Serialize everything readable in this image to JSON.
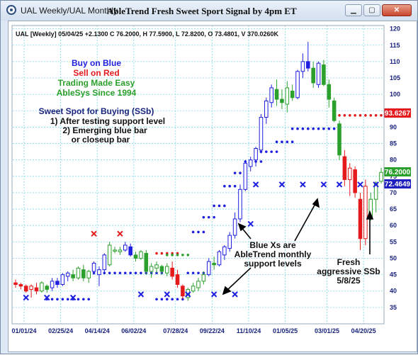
{
  "window": {
    "title": "UAL Weekly/UAL Monthly",
    "chart_title": "AbleTrend Fresh Sweet Sport Signal by 4pm ET"
  },
  "info_line": "UAL [Weekly] 05/04/25 +2.1300 C 76.2000, H 77.5900, L 72.8200, O 73.4801, V 370.0260K",
  "legend": {
    "line1": "Buy on Blue",
    "line2": "Sell on Red",
    "line3": "Trading Made Easy",
    "line4": "AbleSys Since 1994"
  },
  "sweet_spot": {
    "title": "Sweet Spot for Buying (SSb)",
    "item1": "1) After testing support level",
    "item2": "2) Emerging blue bar",
    "item3": "or closeup bar"
  },
  "annotations": {
    "blue_xs": [
      "Blue Xs are",
      "AbleTrend monthly",
      "support levels"
    ],
    "fresh": [
      "Fresh",
      "aggressive SSb",
      "5/8/25"
    ]
  },
  "price_tags": [
    {
      "value": "93.6267",
      "color": "#e41a1c"
    },
    {
      "value": "76.2000",
      "color": "#2ca02c"
    },
    {
      "value": "72.4649",
      "color": "#1f1fbf"
    }
  ],
  "colors": {
    "buy": "#1f1fe0",
    "sell": "#e41a1c",
    "neutral": "#2ca02c",
    "grid": "#7fd9e6"
  },
  "chart_data": {
    "type": "candlestick",
    "x_tick_labels": [
      "01/01/24",
      "02/25/24",
      "04/14/24",
      "06/02/24",
      "07/28/24",
      "09/22/24",
      "11/10/24",
      "01/05/25",
      "03/01/25",
      "04/20/25"
    ],
    "y_ticks": [
      35,
      40,
      45,
      50,
      55,
      60,
      65,
      70,
      75,
      80,
      85,
      90,
      95,
      100,
      105,
      110,
      115,
      120
    ],
    "ylim": [
      30,
      121
    ],
    "bar_count": 71,
    "candles": [
      {
        "o": 42.5,
        "h": 43.5,
        "l": 41.0,
        "c": 42.0,
        "col": "red"
      },
      {
        "o": 42.0,
        "h": 42.5,
        "l": 40.5,
        "c": 41.5,
        "col": "red"
      },
      {
        "o": 41.5,
        "h": 42.0,
        "l": 39.5,
        "c": 40.0,
        "col": "red"
      },
      {
        "o": 40.5,
        "h": 42.0,
        "l": 38.0,
        "c": 41.5,
        "col": "red"
      },
      {
        "o": 41.0,
        "h": 42.5,
        "l": 39.0,
        "c": 40.0,
        "col": "red"
      },
      {
        "o": 40.0,
        "h": 43.0,
        "l": 39.5,
        "c": 42.5,
        "col": "green"
      },
      {
        "o": 41.5,
        "h": 42.0,
        "l": 39.5,
        "c": 40.5,
        "col": "green"
      },
      {
        "o": 41.0,
        "h": 44.0,
        "l": 40.0,
        "c": 43.0,
        "col": "blue"
      },
      {
        "o": 43.0,
        "h": 44.0,
        "l": 41.0,
        "c": 42.0,
        "col": "blue"
      },
      {
        "o": 42.0,
        "h": 45.5,
        "l": 41.5,
        "c": 45.0,
        "col": "blue"
      },
      {
        "o": 44.5,
        "h": 46.0,
        "l": 43.0,
        "c": 45.5,
        "col": "blue"
      },
      {
        "o": 45.0,
        "h": 46.5,
        "l": 43.0,
        "c": 44.0,
        "col": "green"
      },
      {
        "o": 44.0,
        "h": 47.5,
        "l": 43.5,
        "c": 47.0,
        "col": "green"
      },
      {
        "o": 46.5,
        "h": 48.0,
        "l": 43.0,
        "c": 44.0,
        "col": "green"
      },
      {
        "o": 44.0,
        "h": 46.5,
        "l": 42.5,
        "c": 46.0,
        "col": "green"
      },
      {
        "o": 46.0,
        "h": 49.0,
        "l": 45.0,
        "c": 48.5,
        "col": "blue"
      },
      {
        "o": 45.0,
        "h": 47.5,
        "l": 41.5,
        "c": 46.5,
        "col": "blue"
      },
      {
        "o": 46.5,
        "h": 51.5,
        "l": 45.5,
        "c": 51.0,
        "col": "blue"
      },
      {
        "o": 48.0,
        "h": 55.0,
        "l": 47.5,
        "c": 54.0,
        "col": "green"
      },
      {
        "o": 52.5,
        "h": 53.5,
        "l": 51.5,
        "c": 52.5,
        "col": "green"
      },
      {
        "o": 52.0,
        "h": 53.5,
        "l": 51.0,
        "c": 52.5,
        "col": "green"
      },
      {
        "o": 52.5,
        "h": 55.0,
        "l": 52.0,
        "c": 54.0,
        "col": "blue"
      },
      {
        "o": 53.5,
        "h": 54.5,
        "l": 50.5,
        "c": 51.0,
        "col": "blue"
      },
      {
        "o": 51.0,
        "h": 52.0,
        "l": 49.0,
        "c": 50.0,
        "col": "green"
      },
      {
        "o": 50.0,
        "h": 52.5,
        "l": 49.5,
        "c": 52.0,
        "col": "green"
      },
      {
        "o": 51.5,
        "h": 52.5,
        "l": 45.0,
        "c": 46.0,
        "col": "green"
      },
      {
        "o": 46.0,
        "h": 48.5,
        "l": 44.0,
        "c": 47.5,
        "col": "green"
      },
      {
        "o": 47.0,
        "h": 49.0,
        "l": 45.5,
        "c": 48.0,
        "col": "green"
      },
      {
        "o": 47.5,
        "h": 48.0,
        "l": 45.0,
        "c": 46.0,
        "col": "green"
      },
      {
        "o": 45.5,
        "h": 48.5,
        "l": 44.5,
        "c": 47.5,
        "col": "green"
      },
      {
        "o": 47.0,
        "h": 49.0,
        "l": 43.5,
        "c": 44.5,
        "col": "red"
      },
      {
        "o": 45.0,
        "h": 46.5,
        "l": 41.0,
        "c": 42.0,
        "col": "red"
      },
      {
        "o": 41.5,
        "h": 42.0,
        "l": 37.5,
        "c": 38.5,
        "col": "red"
      },
      {
        "o": 38.0,
        "h": 41.0,
        "l": 37.0,
        "c": 40.5,
        "col": "green"
      },
      {
        "o": 40.0,
        "h": 42.5,
        "l": 39.5,
        "c": 41.5,
        "col": "green"
      },
      {
        "o": 41.0,
        "h": 44.0,
        "l": 40.0,
        "c": 43.0,
        "col": "green"
      },
      {
        "o": 43.0,
        "h": 46.0,
        "l": 42.0,
        "c": 45.0,
        "col": "green"
      },
      {
        "o": 45.0,
        "h": 50.0,
        "l": 44.5,
        "c": 49.0,
        "col": "blue"
      },
      {
        "o": 48.5,
        "h": 50.5,
        "l": 46.5,
        "c": 48.0,
        "col": "green"
      },
      {
        "o": 48.0,
        "h": 52.5,
        "l": 47.5,
        "c": 52.0,
        "col": "blue"
      },
      {
        "o": 51.0,
        "h": 54.0,
        "l": 49.5,
        "c": 53.5,
        "col": "blue"
      },
      {
        "o": 53.0,
        "h": 58.0,
        "l": 52.0,
        "c": 57.0,
        "col": "blue"
      },
      {
        "o": 57.0,
        "h": 64.0,
        "l": 56.0,
        "c": 62.0,
        "col": "blue"
      },
      {
        "o": 62.0,
        "h": 72.5,
        "l": 61.0,
        "c": 71.0,
        "col": "blue"
      },
      {
        "o": 71.0,
        "h": 80.0,
        "l": 70.5,
        "c": 79.0,
        "col": "blue"
      },
      {
        "o": 78.0,
        "h": 81.0,
        "l": 76.5,
        "c": 80.0,
        "col": "blue"
      },
      {
        "o": 80.0,
        "h": 84.0,
        "l": 78.0,
        "c": 83.5,
        "col": "blue"
      },
      {
        "o": 83.0,
        "h": 94.0,
        "l": 82.0,
        "c": 93.0,
        "col": "blue"
      },
      {
        "o": 93.0,
        "h": 99.0,
        "l": 91.0,
        "c": 98.0,
        "col": "blue"
      },
      {
        "o": 97.5,
        "h": 103.0,
        "l": 96.0,
        "c": 102.0,
        "col": "blue"
      },
      {
        "o": 101.5,
        "h": 104.5,
        "l": 96.5,
        "c": 98.5,
        "col": "green"
      },
      {
        "o": 98.5,
        "h": 101.5,
        "l": 95.5,
        "c": 97.5,
        "col": "green"
      },
      {
        "o": 97.0,
        "h": 104.0,
        "l": 94.5,
        "c": 102.0,
        "col": "green"
      },
      {
        "o": 101.0,
        "h": 103.0,
        "l": 98.0,
        "c": 99.0,
        "col": "green"
      },
      {
        "o": 99.0,
        "h": 107.5,
        "l": 98.5,
        "c": 107.0,
        "col": "blue"
      },
      {
        "o": 107.0,
        "h": 112.5,
        "l": 105.0,
        "c": 110.0,
        "col": "blue"
      },
      {
        "o": 110.0,
        "h": 116.0,
        "l": 107.0,
        "c": 108.0,
        "col": "blue"
      },
      {
        "o": 108.0,
        "h": 110.0,
        "l": 102.0,
        "c": 103.5,
        "col": "green"
      },
      {
        "o": 103.0,
        "h": 110.0,
        "l": 102.0,
        "c": 109.5,
        "col": "blue"
      },
      {
        "o": 109.0,
        "h": 110.5,
        "l": 102.5,
        "c": 103.0,
        "col": "green"
      },
      {
        "o": 103.0,
        "h": 104.5,
        "l": 96.0,
        "c": 98.5,
        "col": "green"
      },
      {
        "o": 98.0,
        "h": 99.0,
        "l": 91.5,
        "c": 92.0,
        "col": "green"
      },
      {
        "o": 91.0,
        "h": 92.0,
        "l": 80.0,
        "c": 81.5,
        "col": "green"
      },
      {
        "o": 81.0,
        "h": 83.0,
        "l": 72.0,
        "c": 74.0,
        "col": "red"
      },
      {
        "o": 74.0,
        "h": 79.0,
        "l": 69.0,
        "c": 77.5,
        "col": "red"
      },
      {
        "o": 77.0,
        "h": 78.0,
        "l": 68.5,
        "c": 70.0,
        "col": "red"
      },
      {
        "o": 68.0,
        "h": 70.0,
        "l": 52.5,
        "c": 56.0,
        "col": "red"
      },
      {
        "o": 56.0,
        "h": 74.0,
        "l": 54.0,
        "c": 72.0,
        "col": "red"
      },
      {
        "o": 62.0,
        "h": 70.0,
        "l": 61.5,
        "c": 68.0,
        "col": "green"
      },
      {
        "o": 68.0,
        "h": 73.5,
        "l": 64.0,
        "c": 73.0,
        "col": "green"
      },
      {
        "o": 73.48,
        "h": 77.59,
        "l": 72.82,
        "c": 76.2,
        "col": "green"
      }
    ],
    "dot_series": [
      {
        "color": "blue",
        "y": 37.5,
        "from": 6,
        "to": 14
      },
      {
        "color": "blue",
        "y": 37.5,
        "from": 27,
        "to": 32
      },
      {
        "color": "blue",
        "y": 45.5,
        "from": 15,
        "to": 28
      },
      {
        "color": "red",
        "y": 51.5,
        "from": 27,
        "to": 31
      },
      {
        "color": "green",
        "y": 51.0,
        "from": 29,
        "to": 33
      },
      {
        "color": "blue",
        "y": 45.5,
        "from": 33,
        "to": 37
      },
      {
        "color": "blue",
        "y": 58.0,
        "from": 34,
        "to": 36
      },
      {
        "color": "blue",
        "y": 62.5,
        "from": 36,
        "to": 38
      },
      {
        "color": "blue",
        "y": 66.0,
        "from": 38,
        "to": 40
      },
      {
        "color": "blue",
        "y": 72.0,
        "from": 40,
        "to": 42
      },
      {
        "color": "blue",
        "y": 76.0,
        "from": 42,
        "to": 44
      },
      {
        "color": "blue",
        "y": 79.5,
        "from": 44,
        "to": 47
      },
      {
        "color": "blue",
        "y": 82.5,
        "from": 47,
        "to": 50
      },
      {
        "color": "blue",
        "y": 85.5,
        "from": 50,
        "to": 53
      },
      {
        "color": "blue",
        "y": 89.5,
        "from": 53,
        "to": 61
      },
      {
        "color": "red",
        "y": 93.6,
        "from": 61,
        "to": 71
      }
    ],
    "x_markers": [
      {
        "i": 2,
        "y": 38.0,
        "color": "blue"
      },
      {
        "i": 6,
        "y": 38.0,
        "color": "blue"
      },
      {
        "i": 11,
        "y": 38.0,
        "color": "blue"
      },
      {
        "i": 15,
        "y": 57.5,
        "color": "red"
      },
      {
        "i": 20,
        "y": 57.5,
        "color": "red"
      },
      {
        "i": 24,
        "y": 39.0,
        "color": "blue"
      },
      {
        "i": 29,
        "y": 39.0,
        "color": "blue"
      },
      {
        "i": 33,
        "y": 39.0,
        "color": "blue"
      },
      {
        "i": 38,
        "y": 39.0,
        "color": "blue"
      },
      {
        "i": 42,
        "y": 39.0,
        "color": "blue"
      },
      {
        "i": 45,
        "y": 60.5,
        "color": "blue"
      },
      {
        "i": 46,
        "y": 72.5,
        "color": "blue"
      },
      {
        "i": 51,
        "y": 72.5,
        "color": "blue"
      },
      {
        "i": 55,
        "y": 72.5,
        "color": "blue"
      },
      {
        "i": 59,
        "y": 72.5,
        "color": "blue"
      },
      {
        "i": 62,
        "y": 72.5,
        "color": "blue"
      },
      {
        "i": 66,
        "y": 72.5,
        "color": "blue"
      },
      {
        "i": 69,
        "y": 72.5,
        "color": "blue"
      }
    ]
  }
}
